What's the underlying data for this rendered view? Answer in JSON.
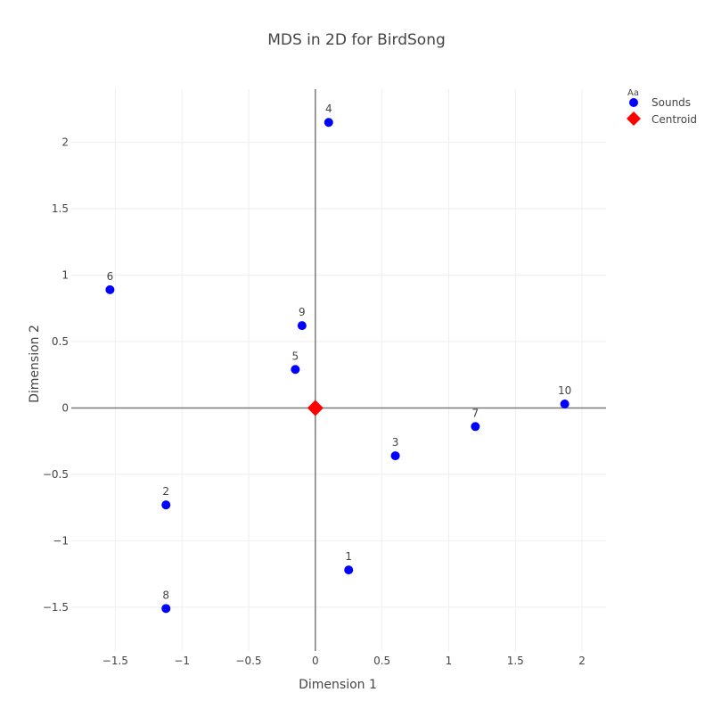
{
  "chart_data": {
    "type": "scatter",
    "title": "MDS in 2D for BirdSong",
    "xlabel": "Dimension 1",
    "ylabel": "Dimension 2",
    "xlim": [
      -1.83,
      2.18
    ],
    "ylim": [
      -1.83,
      2.4
    ],
    "x_ticks": [
      -1.5,
      -1,
      -0.5,
      0,
      0.5,
      1,
      1.5,
      2
    ],
    "y_ticks": [
      -1.5,
      -1,
      -0.5,
      0,
      0.5,
      1,
      1.5,
      2
    ],
    "x_tick_labels": [
      "−1.5",
      "−1",
      "−0.5",
      "0",
      "0.5",
      "1",
      "1.5",
      "2"
    ],
    "y_tick_labels": [
      "−1.5",
      "−1",
      "−0.5",
      "0",
      "0.5",
      "1",
      "1.5",
      "2"
    ],
    "grid": true,
    "zero_lines": true,
    "legend_position": "top-right",
    "legend_title": "Aa",
    "series": [
      {
        "name": "Sounds",
        "color": "#0000ff",
        "marker": "circle",
        "points": [
          {
            "label": "1",
            "x": 0.25,
            "y": -1.22
          },
          {
            "label": "2",
            "x": -1.12,
            "y": -0.73
          },
          {
            "label": "3",
            "x": 0.6,
            "y": -0.36
          },
          {
            "label": "4",
            "x": 0.1,
            "y": 2.15
          },
          {
            "label": "5",
            "x": -0.15,
            "y": 0.29
          },
          {
            "label": "6",
            "x": -1.54,
            "y": 0.89
          },
          {
            "label": "7",
            "x": 1.2,
            "y": -0.14
          },
          {
            "label": "8",
            "x": -1.12,
            "y": -1.51
          },
          {
            "label": "9",
            "x": -0.1,
            "y": 0.62
          },
          {
            "label": "10",
            "x": 1.87,
            "y": 0.03
          }
        ]
      },
      {
        "name": "Centroid",
        "color": "#ff0000",
        "marker": "diamond",
        "points": [
          {
            "label": "",
            "x": 0.0,
            "y": 0.0
          }
        ]
      }
    ]
  }
}
